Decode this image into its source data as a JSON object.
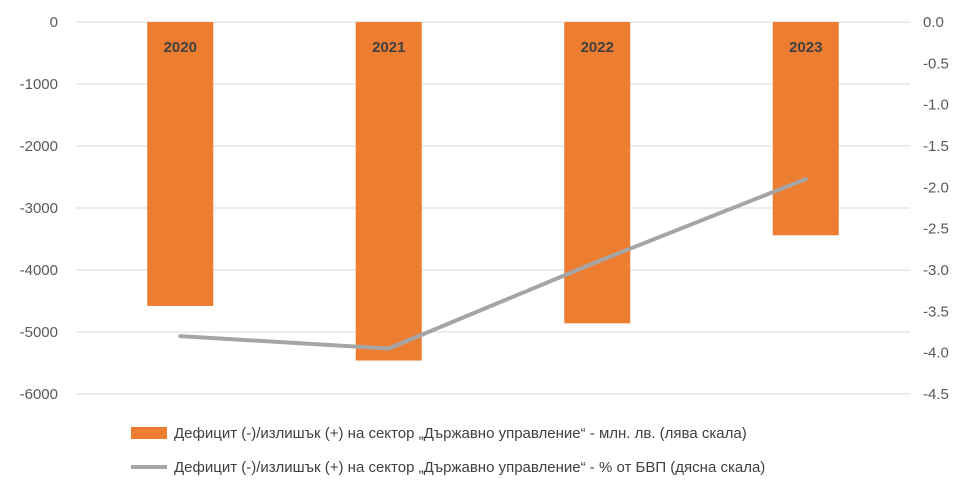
{
  "chart_data": {
    "type": "bar",
    "categories": [
      "2020",
      "2021",
      "2022",
      "2023"
    ],
    "series": [
      {
        "name": "Дефицит (-)/излишък (+) на сектор „Държавно управление“ - млн. лв. (лява скала)",
        "type": "bar",
        "axis": "left",
        "color": "#ED7D31",
        "values": [
          -4580,
          -5460,
          -4860,
          -3440
        ]
      },
      {
        "name": "Дефицит (-)/излишък (+) на сектор „Държавно управление“ - % от БВП (дясна скала)",
        "type": "line",
        "axis": "right",
        "color": "#A5A5A5",
        "values": [
          -3.8,
          -3.95,
          -2.9,
          -1.9
        ]
      }
    ],
    "left_axis": {
      "ylim": [
        -6000,
        0
      ],
      "ticks": [
        "0",
        "-1000",
        "-2000",
        "-3000",
        "-4000",
        "-5000",
        "-6000"
      ]
    },
    "right_axis": {
      "ylim": [
        -4.5,
        0
      ],
      "ticks": [
        "0.0",
        "-0.5",
        "-1.0",
        "-1.5",
        "-2.0",
        "-2.5",
        "-3.0",
        "-3.5",
        "-4.0",
        "-4.5"
      ]
    },
    "grid": true,
    "legend_position": "bottom"
  }
}
